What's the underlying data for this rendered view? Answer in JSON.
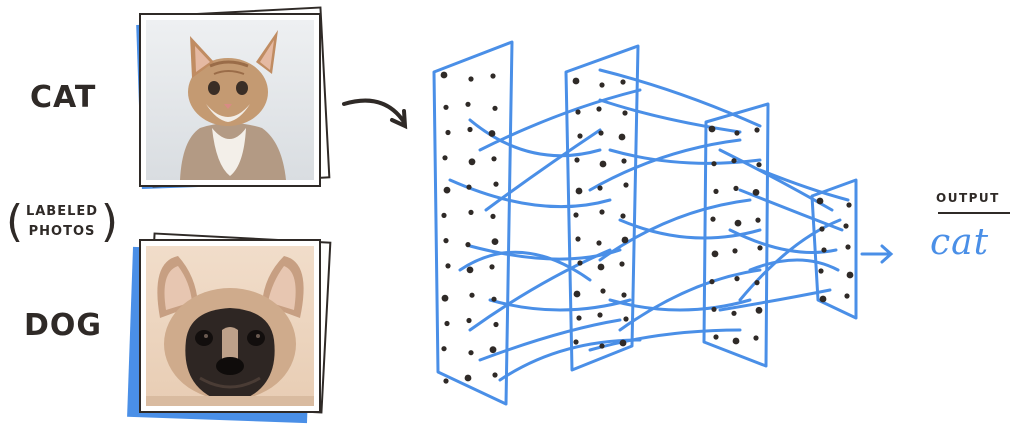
{
  "labels": {
    "cat": "CAT",
    "dog": "DOG",
    "labeled_line1": "LABELED",
    "labeled_line2": "PHOTOS",
    "output_caption": "OUTPUT",
    "output_value": "cat"
  },
  "photos": [
    {
      "subject": "cat",
      "icon": "cat-photo"
    },
    {
      "subject": "dog",
      "icon": "dog-photo"
    }
  ],
  "network": {
    "layers": 4,
    "colors": {
      "network": "#4a8fe7",
      "ink": "#2f2a27",
      "frame": "#2f2a27"
    }
  }
}
